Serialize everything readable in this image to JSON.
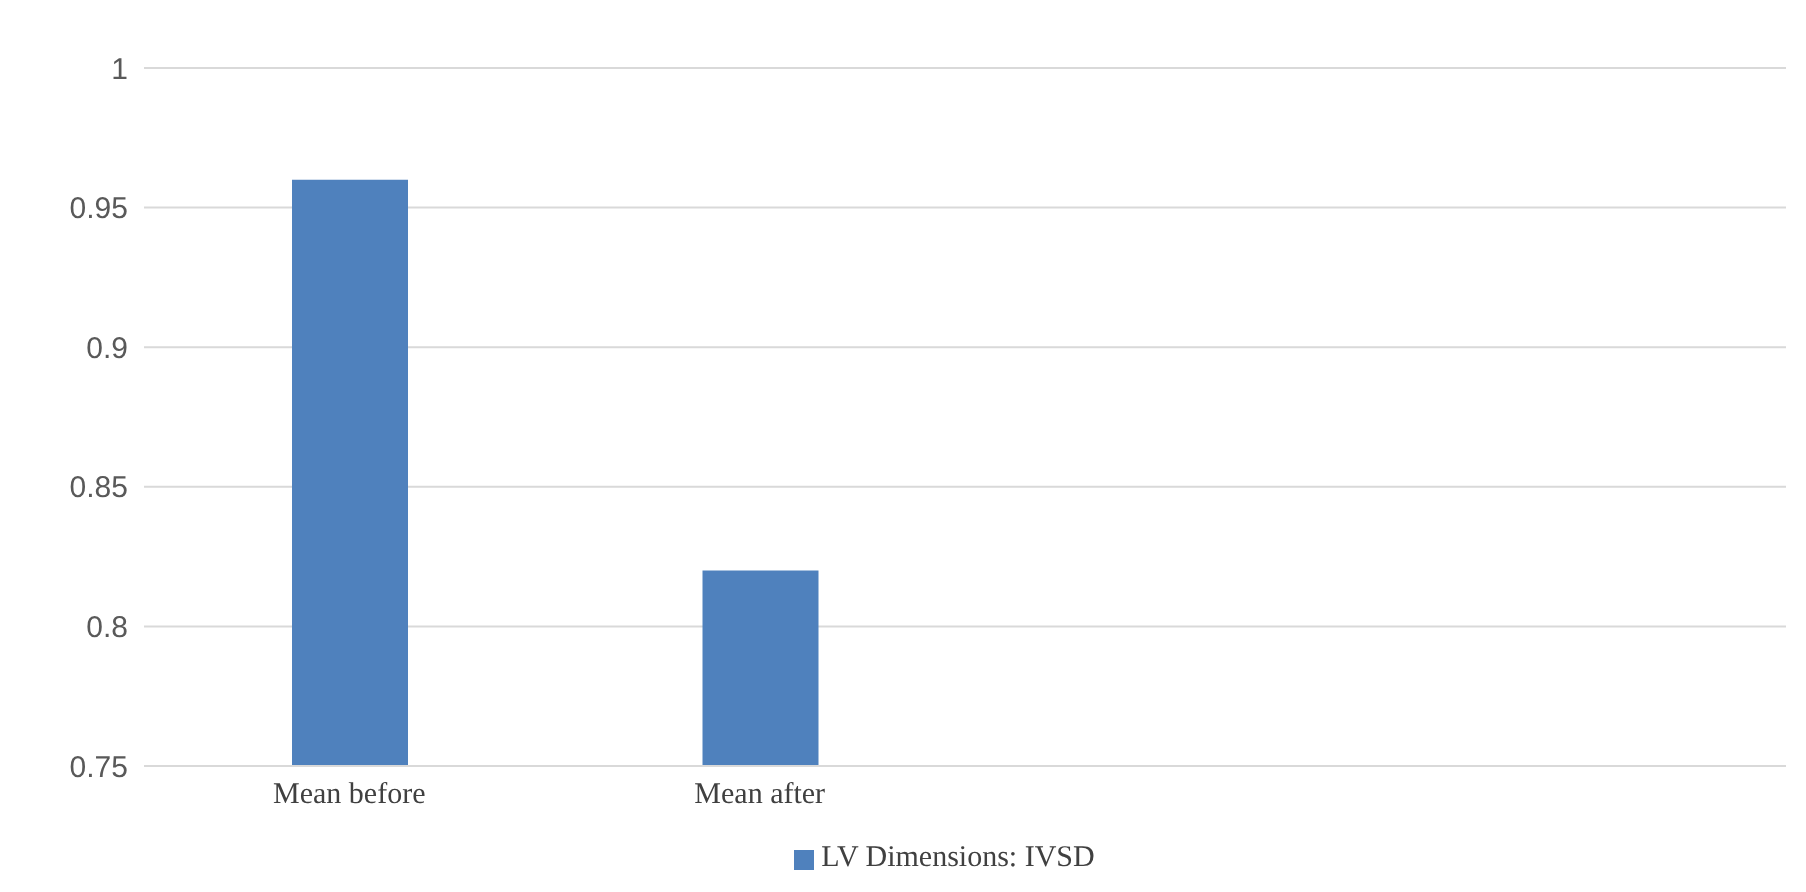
{
  "chart_data": {
    "type": "bar",
    "categories": [
      "Mean before",
      "Mean after",
      null,
      null
    ],
    "series": [
      {
        "name": "LV Dimensions: IVSD",
        "color": "#4f81bd",
        "values": [
          0.96,
          0.82,
          null,
          null
        ]
      }
    ],
    "ylim": [
      0.75,
      1
    ],
    "yticks": [
      0.75,
      0.8,
      0.85,
      0.9,
      0.95,
      1
    ],
    "grid": "y",
    "legend": "bottom"
  }
}
